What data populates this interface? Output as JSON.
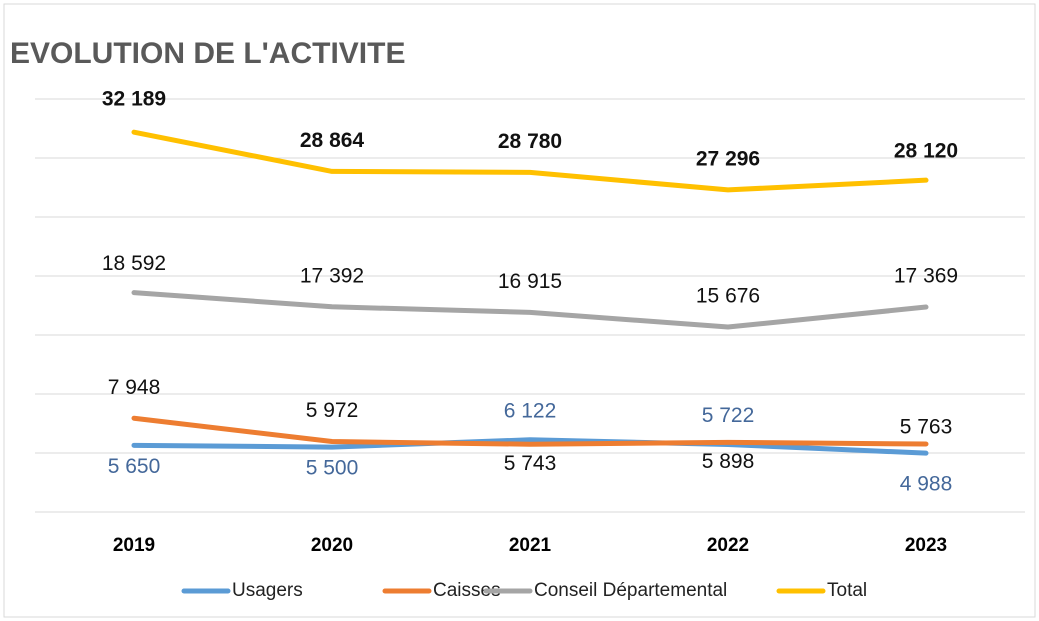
{
  "chart_data": {
    "type": "line",
    "title": "EVOLUTION DE L'ACTIVITE",
    "categories": [
      "2019",
      "2020",
      "2021",
      "2022",
      "2023"
    ],
    "ylim": [
      0,
      35000
    ],
    "yticks": [
      0,
      5000,
      10000,
      15000,
      20000,
      25000,
      30000,
      35000
    ],
    "grid": true,
    "legend": "bottom",
    "series": [
      {
        "name": "Usagers",
        "color": "#5b9bd5",
        "values": [
          5650,
          5500,
          6122,
          5722,
          4988
        ],
        "value_labels": [
          "5 650",
          "5 500",
          "6 122",
          "5 722",
          "4 988"
        ]
      },
      {
        "name": "Caisses",
        "color": "#ed7d31",
        "values": [
          7948,
          5972,
          5743,
          5898,
          5763
        ],
        "value_labels": [
          "7 948",
          "5 972",
          "5 743",
          "5 898",
          "5 763"
        ]
      },
      {
        "name": "Conseil Départemental",
        "color": "#a5a5a5",
        "values": [
          18592,
          17392,
          16915,
          15676,
          17369
        ],
        "value_labels": [
          "18 592",
          "17 392",
          "16 915",
          "15 676",
          "17 369"
        ]
      },
      {
        "name": "Total",
        "color": "#ffc000",
        "values": [
          32189,
          28864,
          28780,
          27296,
          28120
        ],
        "value_labels": [
          "32 189",
          "28 864",
          "28 780",
          "27 296",
          "28 120"
        ]
      }
    ]
  }
}
